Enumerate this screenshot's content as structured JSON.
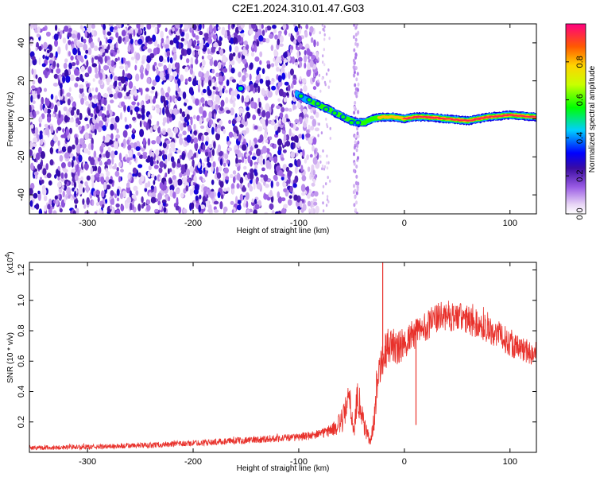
{
  "title": "C2E1.2024.310.01.47.G03",
  "chart_data": [
    {
      "type": "heatmap",
      "name": "spectrogram",
      "xlabel": "Height of straight line (km)",
      "ylabel": "Frequency (Hz)",
      "xlim": [
        -355,
        125
      ],
      "ylim": [
        -50,
        50
      ],
      "xticks": [
        -300,
        -200,
        -100,
        0,
        100
      ],
      "xtick_labels": [
        "-300",
        "-200",
        "-100",
        "0",
        "100"
      ],
      "yticks": [
        -40,
        -20,
        0,
        20,
        40
      ],
      "ytick_labels": [
        "-40",
        "-20",
        "0",
        "20",
        "40"
      ],
      "colorbar": {
        "label": "Normalized spectral amplitude",
        "range": [
          0,
          1
        ],
        "ticks": [
          0.0,
          0.2,
          0.4,
          0.6,
          0.8
        ],
        "tick_labels": [
          "0.0",
          "0.2",
          "0.4",
          "0.6",
          "0.8"
        ]
      },
      "noise_region_x": [
        -355,
        -82
      ],
      "gap_x": [
        -82,
        -45
      ],
      "ridge": {
        "name": "signal-tone",
        "x": [
          -102,
          -95,
          -88,
          -80,
          -72,
          -65,
          -58,
          -50,
          -44,
          -38,
          -30,
          -20,
          -10,
          0,
          10,
          20,
          40,
          60,
          80,
          100,
          125
        ],
        "freq": [
          13,
          11,
          9,
          7,
          5,
          3,
          1,
          -1,
          -2,
          -2,
          0,
          1,
          1,
          0,
          1,
          1,
          0,
          -1,
          1,
          2,
          1
        ],
        "amplitude": [
          0.45,
          0.5,
          0.55,
          0.6,
          0.55,
          0.6,
          0.65,
          0.55,
          0.5,
          0.6,
          0.7,
          0.8,
          0.85,
          0.9,
          0.92,
          0.95,
          0.95,
          0.9,
          0.92,
          0.95,
          0.9
        ]
      },
      "isolated_blob": {
        "x": -155,
        "freq": 16,
        "amplitude": 0.5
      }
    },
    {
      "type": "line",
      "name": "snr",
      "xlabel": "Height of straight line (km)",
      "ylabel": "SNR (10 * v/v)",
      "y_scale_label": "(x10",
      "y_scale_exponent": "4",
      "y_scale_suffix": ")",
      "xlim": [
        -355,
        125
      ],
      "ylim": [
        0,
        12500
      ],
      "xticks": [
        -300,
        -200,
        -100,
        0,
        100
      ],
      "xtick_labels": [
        "-300",
        "-200",
        "-100",
        "0",
        "100"
      ],
      "yticks": [
        2000,
        4000,
        6000,
        8000,
        10000,
        12000
      ],
      "ytick_labels": [
        "0.2",
        "0.4",
        "0.6",
        "0.8",
        "1.0",
        "1.2"
      ],
      "color": "#e8312b",
      "envelope": {
        "x": [
          -355,
          -300,
          -250,
          -200,
          -150,
          -100,
          -80,
          -65,
          -58,
          -52,
          -48,
          -44,
          -38,
          -32,
          -28,
          -25,
          -22,
          -20,
          -15,
          -10,
          -5,
          0,
          10,
          20,
          30,
          40,
          50,
          60,
          70,
          80,
          90,
          100,
          110,
          125
        ],
        "mean": [
          300,
          350,
          450,
          600,
          800,
          1000,
          1200,
          1600,
          2200,
          3500,
          1500,
          3800,
          1800,
          600,
          2500,
          5200,
          6000,
          6500,
          7000,
          7000,
          6800,
          7200,
          7800,
          8300,
          8800,
          9000,
          8900,
          8700,
          8400,
          8100,
          7700,
          7200,
          6800,
          6500
        ],
        "noise": [
          150,
          160,
          180,
          200,
          230,
          260,
          300,
          500,
          900,
          1200,
          700,
          1300,
          800,
          300,
          900,
          1100,
          1300,
          1300,
          1200,
          1200,
          1200,
          1100,
          1000,
          1000,
          1000,
          1000,
          1000,
          1000,
          950,
          950,
          900,
          900,
          850,
          850
        ]
      },
      "spikes": [
        {
          "x": -20.5,
          "y": 12500
        },
        {
          "x": 11,
          "y": 1800
        }
      ]
    }
  ]
}
